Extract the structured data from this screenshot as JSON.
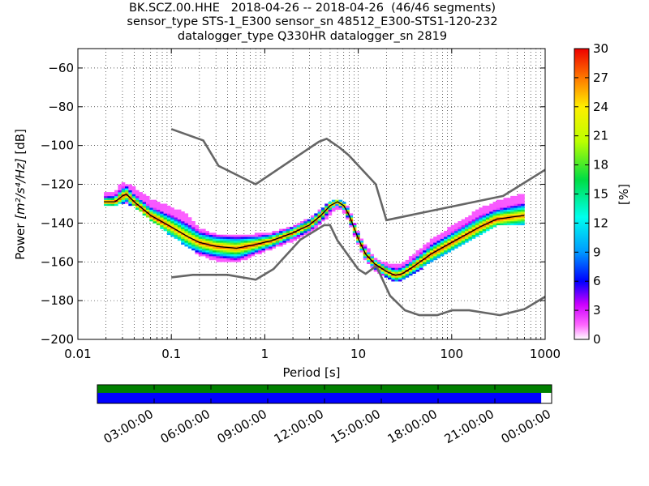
{
  "title": {
    "line1": "BK.SCZ.00.HHE   2018-04-26 -- 2018-04-26  (46/46 segments)",
    "line2": "sensor_type STS-1_E300 sensor_sn 48512_E300-STS1-120-232",
    "line3": "datalogger_type Q330HR datalogger_sn 2819"
  },
  "colors": {
    "noise_model": "#666666",
    "mode_line": "#000000",
    "coverage_top": "#008000",
    "coverage_bottom": "#0000ff"
  },
  "chart_data": [
    {
      "type": "heatmap",
      "name": "ppsd",
      "xlabel": "Period [s]",
      "ylabel_prefix": "Power ",
      "ylabel_unit": "[m²/s⁴/Hz]",
      "ylabel_suffix": " [dB]",
      "xscale": "log",
      "xlim": [
        0.01,
        1000
      ],
      "ylim": [
        -200,
        -50
      ],
      "xticks": [
        {
          "value": 0.01,
          "label": "0.01"
        },
        {
          "value": 0.1,
          "label": "0.1"
        },
        {
          "value": 1,
          "label": "1"
        },
        {
          "value": 10,
          "label": "10"
        },
        {
          "value": 100,
          "label": "100"
        },
        {
          "value": 1000,
          "label": "1000"
        }
      ],
      "yticks": [
        -60,
        -80,
        -100,
        -120,
        -140,
        -160,
        -180,
        -200
      ],
      "grid": "dotted",
      "colorbar": {
        "label": "[%]",
        "min": 0,
        "max": 30,
        "ticks": [
          0,
          3,
          6,
          9,
          12,
          15,
          18,
          21,
          24,
          27,
          30
        ]
      },
      "mode_curve": {
        "period": [
          0.019,
          0.025,
          0.03,
          0.033,
          0.04,
          0.06,
          0.1,
          0.15,
          0.2,
          0.3,
          0.5,
          0.8,
          1.2,
          2,
          3,
          4,
          5,
          6,
          7,
          8,
          10,
          12,
          15,
          20,
          25,
          30,
          40,
          60,
          100,
          200,
          300,
          600
        ],
        "power": [
          -129,
          -129,
          -126,
          -125,
          -129,
          -136,
          -142,
          -147,
          -150,
          -152,
          -153,
          -151,
          -149,
          -145,
          -141,
          -136,
          -131,
          -129,
          -131,
          -136,
          -148,
          -156,
          -161,
          -165,
          -167,
          -166,
          -162,
          -156,
          -150,
          -142,
          -138,
          -136
        ]
      },
      "heatmap_bands": [
        {
          "period": [
            0.019,
            0.025,
            0.03,
            0.04,
            0.06,
            0.1,
            0.15,
            0.2,
            0.3,
            0.5,
            0.8,
            1.2,
            2,
            3,
            4,
            5,
            6,
            7,
            8,
            10,
            12,
            15,
            20,
            25,
            30,
            40,
            60,
            100,
            200,
            300,
            600
          ],
          "low": [
            -131,
            -131,
            -129,
            -131,
            -138,
            -146,
            -152,
            -156,
            -159,
            -160,
            -156,
            -153,
            -149,
            -145,
            -140,
            -135,
            -132,
            -134,
            -139,
            -151,
            -159,
            -164,
            -168,
            -170,
            -169,
            -165,
            -160,
            -154,
            -146,
            -141,
            -140
          ],
          "high": [
            -125,
            -124,
            -119,
            -122,
            -128,
            -132,
            -136,
            -143,
            -146,
            -146,
            -146,
            -145,
            -142,
            -138,
            -133,
            -129,
            -128,
            -129,
            -133,
            -145,
            -152,
            -158,
            -161,
            -162,
            -161,
            -156,
            -149,
            -142,
            -133,
            -129,
            -125
          ]
        }
      ],
      "noise_models": [
        {
          "name": "high",
          "period": [
            0.1,
            0.22,
            0.32,
            0.8,
            3.8,
            4.6,
            6.3,
            7.9,
            15.4,
            20,
            354.8,
            1000
          ],
          "power": [
            -91.5,
            -97.4,
            -110.5,
            -120,
            -98,
            -96.5,
            -101,
            -105,
            -120,
            -138.5,
            -126,
            -112.5
          ]
        },
        {
          "name": "low",
          "period": [
            0.1,
            0.17,
            0.4,
            0.8,
            1.24,
            2.4,
            4.3,
            5,
            6,
            10,
            12,
            15.6,
            21.9,
            31.6,
            45,
            70,
            101,
            154,
            328,
            600,
            1000
          ],
          "power": [
            -168,
            -166.7,
            -166.7,
            -169.2,
            -163.7,
            -148.6,
            -141.1,
            -141.1,
            -149,
            -163.8,
            -166.2,
            -162.1,
            -177.5,
            -185,
            -187.5,
            -187.5,
            -185,
            -185,
            -187.5,
            -184.4,
            -178
          ]
        }
      ]
    },
    {
      "type": "bar",
      "name": "data-coverage",
      "time_ticks": [
        "03:00:00",
        "06:00:00",
        "09:00:00",
        "12:00:00",
        "15:00:00",
        "18:00:00",
        "21:00:00",
        "00:00:00"
      ],
      "ylim": [
        0,
        1
      ],
      "series": [
        {
          "role": "processed",
          "start_fraction": 0.0,
          "end_fraction": 1.0
        },
        {
          "role": "available",
          "start_fraction": 0.0,
          "end_fraction": 0.977
        }
      ]
    }
  ]
}
